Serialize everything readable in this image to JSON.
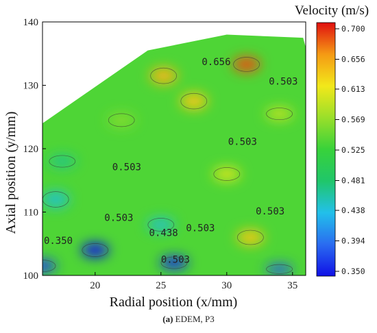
{
  "caption": {
    "letter": "(a)",
    "text": "EDEM, P3"
  },
  "chart_data": {
    "type": "heatmap",
    "title": "",
    "xlabel": "Radial position (x/mm)",
    "ylabel": "Axial position (y/mm)",
    "xlim": [
      16,
      36
    ],
    "ylim": [
      100,
      140
    ],
    "xticks": [
      "20",
      "25",
      "30",
      "35"
    ],
    "yticks": [
      "100",
      "110",
      "120",
      "130",
      "140"
    ],
    "colorbar": {
      "title": "Velocity (m/s)",
      "range": [
        0.35,
        0.7
      ],
      "ticks": [
        "0.700",
        "0.656",
        "0.613",
        "0.569",
        "0.525",
        "0.481",
        "0.438",
        "0.394",
        "0.350"
      ],
      "colors": [
        "#1010e6",
        "#2a6cf0",
        "#22c0ea",
        "#20c66a",
        "#38d23a",
        "#9adf2a",
        "#f2e81a",
        "#f59a14",
        "#e01010"
      ]
    },
    "boundary": [
      [
        16,
        124
      ],
      [
        24,
        135.5
      ],
      [
        30,
        138
      ],
      [
        35.8,
        137.5
      ],
      [
        36,
        136
      ],
      [
        36,
        100
      ],
      [
        16,
        100
      ]
    ],
    "contour_labels": [
      {
        "text": "0.656",
        "x": 29.2,
        "y": 133.2
      },
      {
        "text": "0.503",
        "x": 34.3,
        "y": 130.1
      },
      {
        "text": "0.503",
        "x": 31.2,
        "y": 120.6
      },
      {
        "text": "0.503",
        "x": 22.4,
        "y": 116.6
      },
      {
        "text": "0.503",
        "x": 33.3,
        "y": 109.6
      },
      {
        "text": "0.503",
        "x": 21.8,
        "y": 108.6
      },
      {
        "text": "0.438",
        "x": 25.2,
        "y": 106.2
      },
      {
        "text": "0.503",
        "x": 28.0,
        "y": 107.0
      },
      {
        "text": "0.350",
        "x": 17.2,
        "y": 105.0
      },
      {
        "text": "0.503",
        "x": 26.1,
        "y": 102.0
      }
    ],
    "field_blobs": [
      {
        "x": 16,
        "y": 101.5,
        "rx": 20,
        "ry": 9,
        "v": 0.37
      },
      {
        "x": 20,
        "y": 104,
        "rx": 20,
        "ry": 10,
        "v": 0.35
      },
      {
        "x": 26,
        "y": 102,
        "rx": 20,
        "ry": 9,
        "v": 0.36
      },
      {
        "x": 34,
        "y": 101,
        "rx": 20,
        "ry": 7,
        "v": 0.38
      },
      {
        "x": 17,
        "y": 112,
        "rx": 20,
        "ry": 12,
        "v": 0.45
      },
      {
        "x": 25,
        "y": 108,
        "rx": 20,
        "ry": 10,
        "v": 0.45
      },
      {
        "x": 17.5,
        "y": 118,
        "rx": 20,
        "ry": 9,
        "v": 0.47
      },
      {
        "x": 31.8,
        "y": 106,
        "rx": 20,
        "ry": 11,
        "v": 0.63
      },
      {
        "x": 30,
        "y": 116,
        "rx": 20,
        "ry": 10,
        "v": 0.6
      },
      {
        "x": 25.2,
        "y": 131.5,
        "rx": 20,
        "ry": 12,
        "v": 0.64
      },
      {
        "x": 27.5,
        "y": 127.5,
        "rx": 20,
        "ry": 12,
        "v": 0.63
      },
      {
        "x": 31.5,
        "y": 133.3,
        "rx": 20,
        "ry": 11,
        "v": 0.68
      },
      {
        "x": 22,
        "y": 124.5,
        "rx": 20,
        "ry": 10,
        "v": 0.56
      },
      {
        "x": 34,
        "y": 125.5,
        "rx": 20,
        "ry": 9,
        "v": 0.59
      }
    ]
  }
}
